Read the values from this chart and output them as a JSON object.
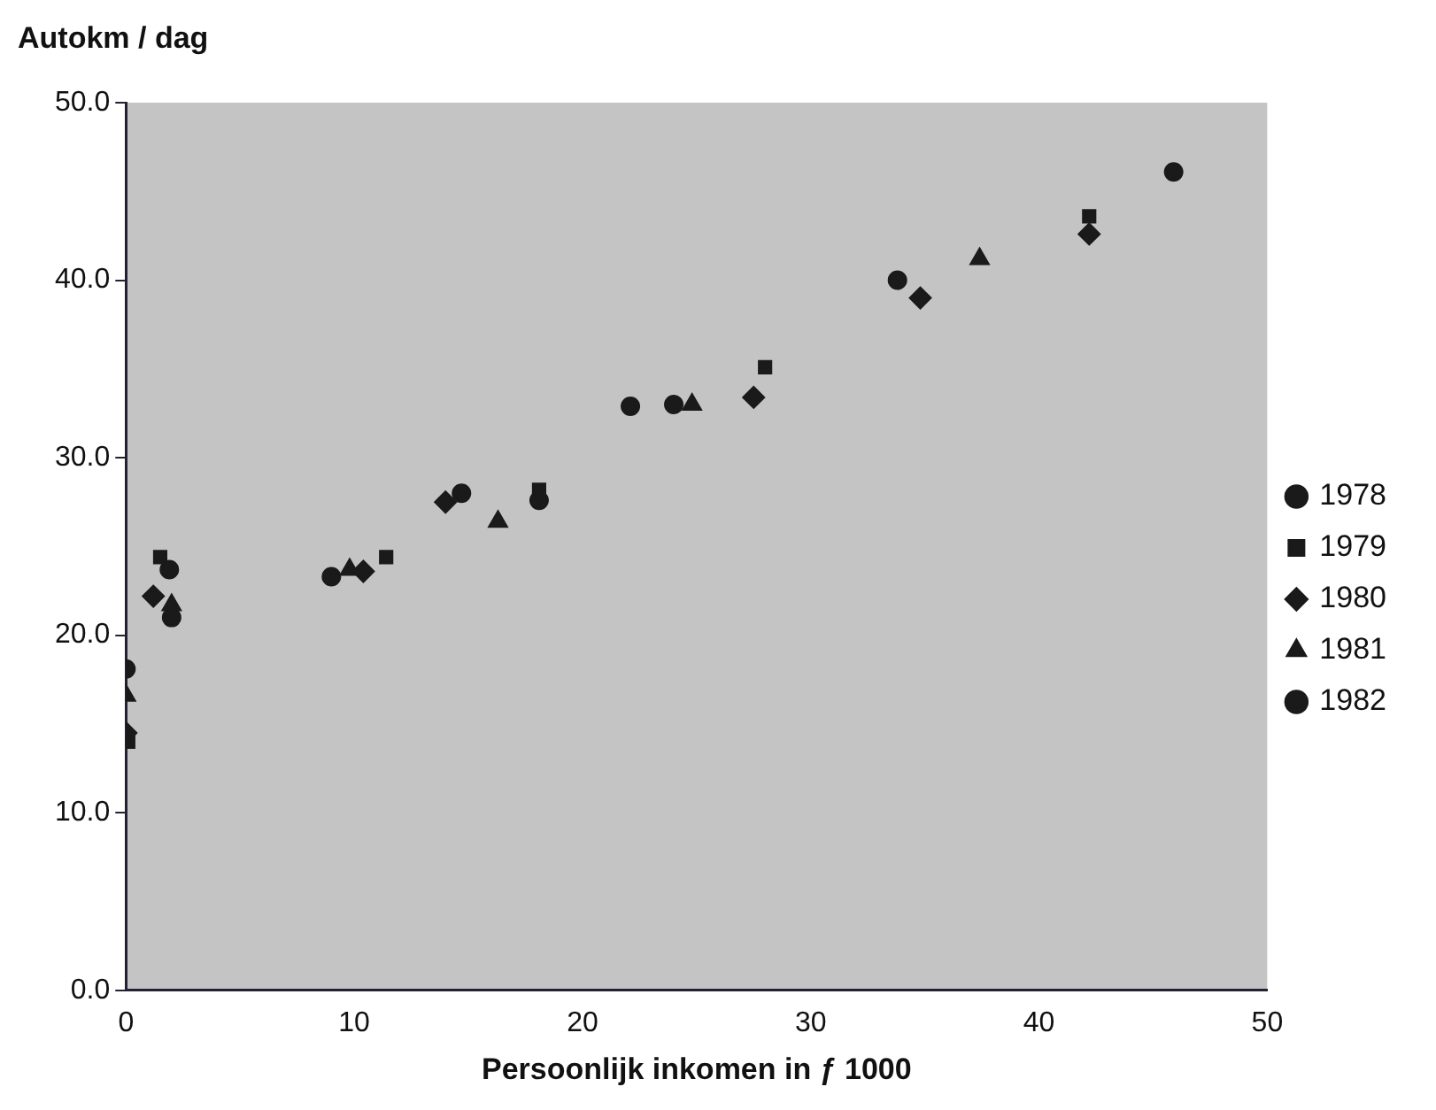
{
  "chart_data": {
    "type": "scatter",
    "xlabel": "Persoonlijk inkomen in ƒ 1000",
    "ylabel": "Autokm / dag",
    "xlim": [
      0,
      50
    ],
    "xticks": [
      0,
      10,
      20,
      30,
      40,
      50
    ],
    "ylim": [
      0,
      50
    ],
    "yticks": [
      {
        "value": 0,
        "label": "0.0"
      },
      {
        "value": 10,
        "label": "10.0"
      },
      {
        "value": 20,
        "label": "20.0"
      },
      {
        "value": 30,
        "label": "30.0"
      },
      {
        "value": 40,
        "label": "40.0"
      },
      {
        "value": 50,
        "label": "50.0"
      }
    ],
    "grid": false,
    "legend": "right",
    "series": [
      {
        "name": "1978",
        "color": "#1a1a1a",
        "marker": "circle",
        "x": [
          0,
          1.9,
          9.0,
          14.7,
          22.1,
          33.8
        ],
        "values": [
          18.1,
          23.7,
          23.3,
          28.0,
          32.9,
          40.0
        ]
      },
      {
        "name": "1979",
        "color": "#1a1a1a",
        "marker": "square",
        "x": [
          0.1,
          1.5,
          11.4,
          18.1,
          28.0,
          42.2
        ],
        "values": [
          14.0,
          24.4,
          24.4,
          28.2,
          35.1,
          43.6
        ]
      },
      {
        "name": "1980",
        "color": "#1a1a1a",
        "marker": "diamond",
        "x": [
          0,
          1.2,
          10.4,
          14.0,
          27.5,
          34.8,
          42.2
        ],
        "values": [
          14.5,
          22.2,
          23.6,
          27.5,
          33.4,
          39.0,
          42.6
        ]
      },
      {
        "name": "1981",
        "color": "#1a1a1a",
        "marker": "triangle",
        "x": [
          0,
          2.0,
          9.8,
          16.3,
          24.8,
          37.4
        ],
        "values": [
          16.6,
          21.7,
          23.7,
          26.4,
          33.0,
          41.2
        ]
      },
      {
        "name": "1982",
        "color": "#1a1a1a",
        "marker": "circle",
        "x": [
          2.0,
          10.6,
          18.1,
          24.0,
          45.9
        ],
        "values": [
          21.0,
          null,
          27.6,
          33.0,
          46.1
        ]
      }
    ]
  }
}
